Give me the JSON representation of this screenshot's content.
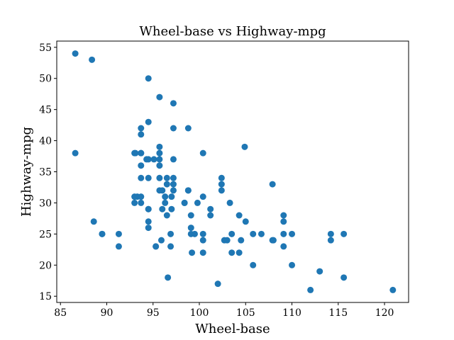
{
  "chart_data": {
    "type": "scatter",
    "title": "Wheel-base vs Highway-mpg",
    "xlabel": "Wheel-base",
    "ylabel": "Highway-mpg",
    "xlim": [
      84.6,
      122.6
    ],
    "ylim": [
      14.0,
      56.0
    ],
    "xticks": [
      85,
      90,
      95,
      100,
      105,
      110,
      115,
      120
    ],
    "yticks": [
      15,
      20,
      25,
      30,
      35,
      40,
      45,
      50,
      55
    ],
    "grid": false,
    "marker_color": "#1f77b4",
    "points": [
      [
        86.6,
        54
      ],
      [
        86.6,
        38
      ],
      [
        88.4,
        53
      ],
      [
        88.6,
        27
      ],
      [
        89.5,
        25
      ],
      [
        89.5,
        25
      ],
      [
        91.3,
        25
      ],
      [
        91.3,
        23
      ],
      [
        93.0,
        38
      ],
      [
        93.0,
        31
      ],
      [
        93.0,
        30
      ],
      [
        93.1,
        38
      ],
      [
        93.3,
        31
      ],
      [
        93.7,
        42
      ],
      [
        93.7,
        41
      ],
      [
        93.7,
        38
      ],
      [
        93.7,
        38
      ],
      [
        93.7,
        36
      ],
      [
        93.7,
        34
      ],
      [
        93.7,
        31
      ],
      [
        93.7,
        30
      ],
      [
        94.3,
        37
      ],
      [
        94.5,
        50
      ],
      [
        94.5,
        43
      ],
      [
        94.5,
        37
      ],
      [
        94.5,
        34
      ],
      [
        94.5,
        29
      ],
      [
        94.5,
        27
      ],
      [
        94.5,
        26
      ],
      [
        94.5,
        29
      ],
      [
        95.1,
        37
      ],
      [
        95.3,
        23
      ],
      [
        95.7,
        39
      ],
      [
        95.7,
        38
      ],
      [
        95.7,
        37
      ],
      [
        95.7,
        36
      ],
      [
        95.7,
        34
      ],
      [
        95.7,
        32
      ],
      [
        95.7,
        47
      ],
      [
        95.3,
        23
      ],
      [
        95.9,
        24
      ],
      [
        96.0,
        32
      ],
      [
        96.0,
        29
      ],
      [
        96.3,
        31
      ],
      [
        96.3,
        30
      ],
      [
        96.5,
        34
      ],
      [
        96.5,
        33
      ],
      [
        96.5,
        28
      ],
      [
        96.6,
        18
      ],
      [
        96.9,
        25
      ],
      [
        96.9,
        23
      ],
      [
        97.0,
        31
      ],
      [
        97.0,
        29
      ],
      [
        97.2,
        46
      ],
      [
        97.2,
        42
      ],
      [
        97.2,
        37
      ],
      [
        97.2,
        34
      ],
      [
        97.2,
        33
      ],
      [
        97.2,
        32
      ],
      [
        98.4,
        30
      ],
      [
        98.4,
        30
      ],
      [
        98.8,
        42
      ],
      [
        98.8,
        32
      ],
      [
        98.8,
        32
      ],
      [
        99.1,
        28
      ],
      [
        99.1,
        26
      ],
      [
        99.1,
        25
      ],
      [
        99.2,
        22
      ],
      [
        99.5,
        25
      ],
      [
        99.8,
        30
      ],
      [
        100.4,
        38
      ],
      [
        100.4,
        31
      ],
      [
        100.4,
        25
      ],
      [
        100.4,
        24
      ],
      [
        100.4,
        22
      ],
      [
        101.2,
        29
      ],
      [
        101.2,
        28
      ],
      [
        102.0,
        17
      ],
      [
        102.4,
        34
      ],
      [
        102.4,
        33
      ],
      [
        102.4,
        32
      ],
      [
        102.7,
        24
      ],
      [
        103.0,
        24
      ],
      [
        103.3,
        30
      ],
      [
        103.5,
        25
      ],
      [
        103.5,
        22
      ],
      [
        104.3,
        28
      ],
      [
        104.3,
        22
      ],
      [
        104.5,
        24
      ],
      [
        104.9,
        39
      ],
      [
        105.0,
        27
      ],
      [
        105.8,
        25
      ],
      [
        105.8,
        20
      ],
      [
        106.7,
        25
      ],
      [
        107.9,
        33
      ],
      [
        107.9,
        24
      ],
      [
        108.0,
        24
      ],
      [
        109.1,
        28
      ],
      [
        109.1,
        27
      ],
      [
        109.1,
        25
      ],
      [
        109.1,
        23
      ],
      [
        110.0,
        25
      ],
      [
        110.0,
        20
      ],
      [
        112.0,
        16
      ],
      [
        113.0,
        19
      ],
      [
        114.2,
        25
      ],
      [
        114.2,
        24
      ],
      [
        115.6,
        25
      ],
      [
        115.6,
        18
      ],
      [
        120.9,
        16
      ]
    ]
  }
}
